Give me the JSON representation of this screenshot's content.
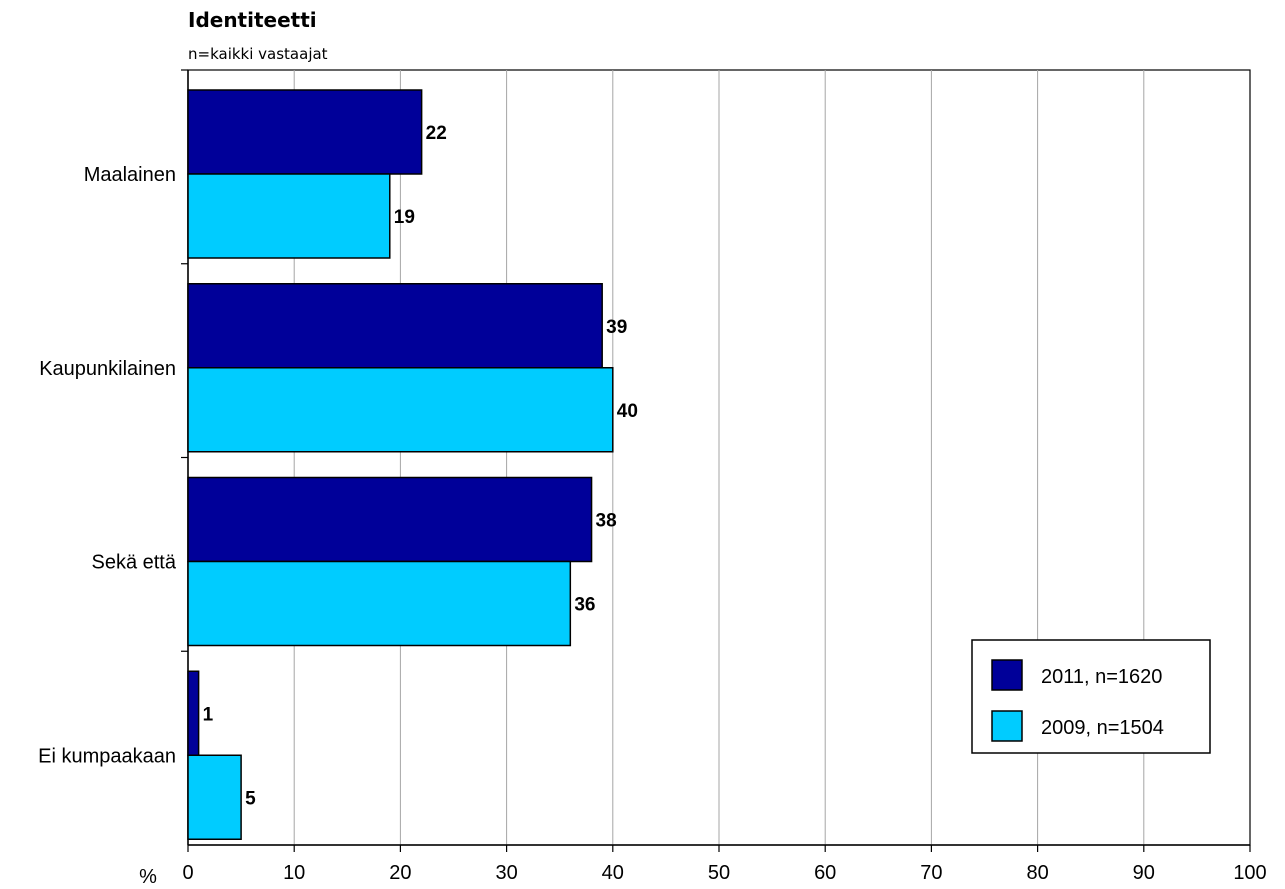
{
  "chart_data": {
    "type": "bar",
    "orientation": "horizontal",
    "title": "Identiteetti",
    "subtitle": "n=kaikki vastaajat",
    "categories": [
      "Maalainen",
      "Kaupunkilainen",
      "Sekä että",
      "Ei kumpaakaan"
    ],
    "series": [
      {
        "name": "2011, n=1620",
        "color": "#000099",
        "values": [
          22,
          39,
          38,
          1
        ]
      },
      {
        "name": "2009, n=1504",
        "color": "#00CCFF",
        "values": [
          19,
          40,
          36,
          5
        ]
      }
    ],
    "x_unit_label": "%",
    "xlim": [
      0,
      100
    ],
    "x_ticks": [
      0,
      10,
      20,
      30,
      40,
      50,
      60,
      70,
      80,
      90,
      100
    ],
    "grid": "vertical",
    "legend_position": "bottom-right"
  }
}
